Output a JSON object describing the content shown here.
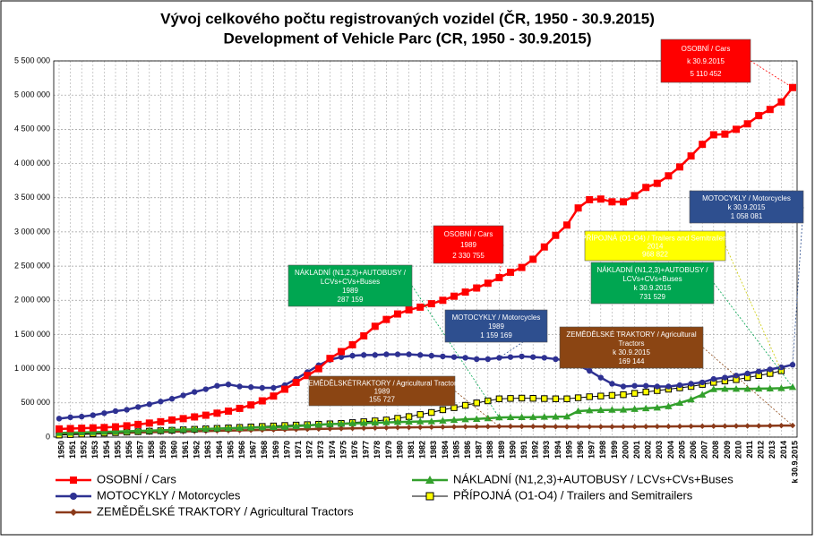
{
  "chart_data": {
    "type": "line",
    "title": [
      "Vývoj celkového počtu registrovaných vozidel (ČR, 1950 - 30.9.2015)",
      "Development of  Vehicle Parc (CR, 1950 - 30.9.2015)"
    ],
    "categories": [
      "1950",
      "1951",
      "1952",
      "1953",
      "1954",
      "1955",
      "1956",
      "1957",
      "1958",
      "1959",
      "1960",
      "1961",
      "1962",
      "1963",
      "1964",
      "1965",
      "1966",
      "1967",
      "1968",
      "1969",
      "1970",
      "1971",
      "1972",
      "1973",
      "1974",
      "1975",
      "1976",
      "1977",
      "1978",
      "1979",
      "1980",
      "1981",
      "1982",
      "1983",
      "1984",
      "1985",
      "1986",
      "1987",
      "1988",
      "1989",
      "1990",
      "1991",
      "1992",
      "1993",
      "1994",
      "1995",
      "1996",
      "1997",
      "1998",
      "1999",
      "2000",
      "2001",
      "2002",
      "2003",
      "2004",
      "2005",
      "2006",
      "2007",
      "2008",
      "2009",
      "2010",
      "2011",
      "2012",
      "2013",
      "2014",
      "k 30.9.2015"
    ],
    "series": [
      {
        "name": "OSOBNÍ / Cars",
        "color": "#ff0000",
        "marker": "square",
        "values": [
          120000,
          125000,
          130000,
          135000,
          140000,
          150000,
          165000,
          185000,
          205000,
          225000,
          250000,
          270000,
          295000,
          320000,
          350000,
          380000,
          420000,
          470000,
          530000,
          600000,
          700000,
          800000,
          900000,
          1000000,
          1150000,
          1250000,
          1350000,
          1480000,
          1620000,
          1720000,
          1800000,
          1860000,
          1900000,
          1950000,
          2000000,
          2060000,
          2120000,
          2180000,
          2250000,
          2330755,
          2410000,
          2480000,
          2600000,
          2780000,
          2950000,
          3100000,
          3350000,
          3470000,
          3480000,
          3440000,
          3440000,
          3530000,
          3650000,
          3710000,
          3820000,
          3950000,
          4110000,
          4280000,
          4420000,
          4430000,
          4500000,
          4580000,
          4700000,
          4790000,
          4900000,
          5110452
        ]
      },
      {
        "name": "NÁKLADNÍ (N1,2,3)+AUTOBUSY / LCVs+CVs+Buses",
        "color": "#33a02c",
        "marker": "triangle",
        "values": [
          60000,
          64000,
          68000,
          72000,
          76000,
          80000,
          85000,
          90000,
          95000,
          100000,
          105000,
          110000,
          115000,
          120000,
          125000,
          130000,
          134000,
          138000,
          142000,
          146000,
          150000,
          160000,
          170000,
          180000,
          190000,
          195000,
          200000,
          205000,
          210000,
          215000,
          220000,
          225000,
          228000,
          230000,
          240000,
          250000,
          260000,
          265000,
          275000,
          287159,
          290000,
          290000,
          292000,
          295000,
          298000,
          300000,
          380000,
          390000,
          395000,
          398000,
          400000,
          410000,
          420000,
          430000,
          450000,
          500000,
          550000,
          620000,
          700000,
          705000,
          705000,
          705000,
          708000,
          710000,
          715000,
          731529
        ]
      },
      {
        "name": "MOTOCYKLY / Motorcycles",
        "color": "#2e3192",
        "marker": "circle",
        "values": [
          270000,
          290000,
          300000,
          320000,
          350000,
          380000,
          400000,
          440000,
          480000,
          520000,
          560000,
          610000,
          660000,
          700000,
          750000,
          770000,
          740000,
          730000,
          720000,
          720000,
          760000,
          850000,
          950000,
          1050000,
          1130000,
          1170000,
          1190000,
          1200000,
          1200000,
          1210000,
          1210000,
          1210000,
          1200000,
          1190000,
          1180000,
          1170000,
          1160000,
          1140000,
          1140000,
          1159169,
          1170000,
          1180000,
          1170000,
          1160000,
          1140000,
          1120000,
          1050000,
          970000,
          870000,
          780000,
          740000,
          750000,
          750000,
          740000,
          740000,
          760000,
          780000,
          800000,
          850000,
          870000,
          900000,
          930000,
          960000,
          990000,
          1020000,
          1058081
        ]
      },
      {
        "name": "PŘÍPOJNÁ (O1-O4) / Trailers and Semitrailers",
        "color": "#ffff00",
        "marker": "square-outline",
        "values": [
          30000,
          37000,
          44000,
          51000,
          58000,
          65000,
          72000,
          79000,
          86000,
          93000,
          100000,
          107000,
          114000,
          121000,
          128000,
          135000,
          142000,
          149000,
          156000,
          163000,
          170000,
          176000,
          182000,
          188000,
          194000,
          200000,
          212000,
          225000,
          237000,
          250000,
          275000,
          300000,
          330000,
          360000,
          400000,
          430000,
          465000,
          500000,
          530000,
          560000,
          565000,
          570000,
          567000,
          563000,
          560000,
          560000,
          575000,
          590000,
          600000,
          610000,
          620000,
          640000,
          660000,
          680000,
          700000,
          720000,
          740000,
          770000,
          800000,
          820000,
          840000,
          870000,
          900000,
          930000,
          968822,
          null
        ]
      },
      {
        "name": "ZEMĚDĚLSKÉ TRAKTORY / Agricultural Tractors",
        "color": "#8b3a1a",
        "marker": "diamond",
        "values": [
          40000,
          44000,
          48000,
          52000,
          56000,
          60000,
          64000,
          68000,
          72000,
          76000,
          80000,
          83000,
          86000,
          89000,
          92000,
          95000,
          98000,
          101000,
          104000,
          107000,
          110000,
          113000,
          116000,
          119000,
          122000,
          125000,
          128000,
          131000,
          134000,
          137000,
          140000,
          142000,
          144000,
          146000,
          148000,
          150000,
          152000,
          153000,
          154000,
          155727,
          156000,
          156000,
          155000,
          154000,
          153000,
          152000,
          152000,
          152000,
          152000,
          152000,
          152000,
          153000,
          154000,
          155000,
          156000,
          157000,
          158000,
          159000,
          160000,
          161000,
          162000,
          163000,
          164000,
          166000,
          168000,
          169144
        ]
      }
    ],
    "ylim": [
      0,
      5500000
    ],
    "yticks": [
      {
        "value": 0,
        "label": "0"
      },
      {
        "value": 500000,
        "label": "500 000"
      },
      {
        "value": 1000000,
        "label": "1 000 000"
      },
      {
        "value": 1500000,
        "label": "1 500 000"
      },
      {
        "value": 2000000,
        "label": "2 000 000"
      },
      {
        "value": 2500000,
        "label": "2 500 000"
      },
      {
        "value": 3000000,
        "label": "3 000 000"
      },
      {
        "value": 3500000,
        "label": "3 500 000"
      },
      {
        "value": 4000000,
        "label": "4 000 000"
      },
      {
        "value": 4500000,
        "label": "4 500 000"
      },
      {
        "value": 5000000,
        "label": "5 000 000"
      },
      {
        "value": 5500000,
        "label": "5 500 000"
      }
    ],
    "grid": true,
    "annotations": [
      {
        "lines": [
          "OSOBNÍ / Cars",
          "k 30.9.2015",
          "5 110 452"
        ],
        "color": "#ff0000"
      },
      {
        "lines": [
          "OSOBNÍ / Cars",
          "1989",
          "2 330 755"
        ],
        "color": "#ff0000"
      },
      {
        "lines": [
          "NÁKLADNÍ  (N1,2,3)+AUTOBUSY  /",
          "LCVs+CVs+Buses",
          "1989",
          "287 159"
        ],
        "color": "#00a651"
      },
      {
        "lines": [
          "MOTOCYKLY / Motorcycles",
          "1989",
          "1 159 169"
        ],
        "color": "#2e4f8f"
      },
      {
        "lines": [
          "ZEMĚDĚLSKÉTRAKTORY / Agricultural Tractors",
          "1989",
          "155 727"
        ],
        "color": "#8b4513"
      },
      {
        "lines": [
          "PŘÍPOJNÁ (O1-O4) / Trailers and Semitrailers",
          "2014",
          "968 822"
        ],
        "color": "#ffff00"
      },
      {
        "lines": [
          "NÁKLADNÍ  (N1,2,3)+AUTOBUSY  /",
          "LCVs+CVs+Buses",
          "k 30.9.2015",
          "731 529"
        ],
        "color": "#00a651"
      },
      {
        "lines": [
          "MOTOCYKLY / Motorcycles",
          "k 30.9.2015",
          "1 058 081"
        ],
        "color": "#2e4f8f"
      },
      {
        "lines": [
          "ZEMĚDĚLSKÉ  TRAKTORY / Agricultural",
          "Tractors",
          "k 30.9.2015",
          "169 144"
        ],
        "color": "#8b4513"
      }
    ]
  }
}
